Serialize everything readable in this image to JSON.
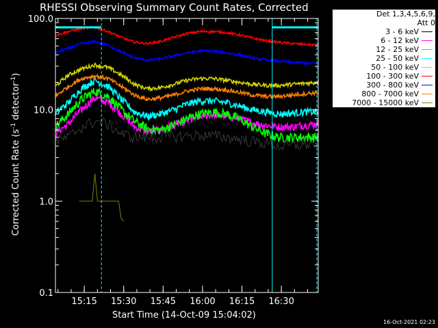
{
  "chart_data": {
    "type": "line",
    "title": "RHESSI Observing Summary Count Rates, Corrected",
    "xlabel": "Start Time (14-Oct-09 15:04:02)",
    "ylabel_prefix": "Corrected Count Rate (s",
    "ylabel_mid": " detector",
    "ylabel_suffix": ")",
    "ylabel_sup": "-1",
    "yscale": "log",
    "ylim": [
      0.1,
      100
    ],
    "xlim_minutes": [
      0,
      100
    ],
    "y_ticks": [
      "0.1",
      "1.0",
      "10.0",
      "100.0"
    ],
    "x_ticks": [
      {
        "label": "15:15",
        "min": 10.97
      },
      {
        "label": "15:30",
        "min": 25.97
      },
      {
        "label": "15:45",
        "min": 40.97
      },
      {
        "label": "16:00",
        "min": 55.97
      },
      {
        "label": "16:15",
        "min": 70.97
      },
      {
        "label": "16:30",
        "min": 85.97
      }
    ],
    "attenuator_bars": [
      {
        "x0": 0,
        "x1": 17.5,
        "y": 80
      },
      {
        "x0": 82.5,
        "x1": 100,
        "y": 80
      }
    ],
    "night_markers": [
      0.0,
      82.5
    ],
    "saa_markers": [
      17.5,
      100.0
    ],
    "legend_header": [
      "Det 1,3,4,5,6,9,",
      "Att 0"
    ],
    "timestamp": "16-Oct-2021 02:23",
    "series": [
      {
        "name": "3 - 6 keV",
        "color": "#000000",
        "draw": "#000000",
        "x": [
          0,
          5,
          10,
          15,
          20,
          25,
          30,
          40,
          50,
          55,
          60,
          65,
          70,
          75,
          80,
          85,
          90,
          95,
          100
        ],
        "y": [
          4.5,
          5.0,
          6.5,
          7.5,
          7.0,
          5.5,
          5.0,
          5.0,
          5.2,
          5.3,
          5.2,
          5.0,
          4.8,
          4.5,
          4.3,
          4.0,
          4.0,
          4.2,
          4.3
        ]
      },
      {
        "name": "6 - 12 keV",
        "color": "#ff00ff",
        "x": [
          0,
          5,
          10,
          15,
          20,
          25,
          30,
          35,
          40,
          45,
          50,
          55,
          60,
          65,
          70,
          75,
          80,
          85,
          90,
          95,
          100
        ],
        "y": [
          5.5,
          7,
          10,
          13.5,
          12,
          9,
          6.5,
          5.8,
          6,
          6.8,
          7.5,
          8.5,
          8.8,
          8.5,
          8,
          7.2,
          6.8,
          6.5,
          6.5,
          6.8,
          7
        ]
      },
      {
        "name": "12 - 25 keV",
        "color": "#00ff00",
        "x": [
          0,
          5,
          10,
          15,
          20,
          25,
          30,
          35,
          40,
          45,
          50,
          55,
          60,
          65,
          70,
          75,
          80,
          85,
          90,
          95,
          100
        ],
        "y": [
          6.5,
          9,
          13,
          16,
          14,
          10,
          7.5,
          6.2,
          6,
          6.8,
          8,
          9,
          9.5,
          9,
          8,
          6.5,
          5.5,
          5,
          5,
          5,
          5
        ]
      },
      {
        "name": "25 - 50 keV",
        "color": "#00ffff",
        "x": [
          0,
          5,
          10,
          15,
          20,
          25,
          30,
          35,
          40,
          45,
          50,
          55,
          60,
          65,
          70,
          75,
          80,
          85,
          90,
          95,
          100
        ],
        "y": [
          9,
          12,
          17,
          21,
          18,
          13,
          9.5,
          8.5,
          9,
          10,
          11.5,
          12.5,
          12.5,
          12,
          11,
          10,
          9.5,
          9,
          9.2,
          9.5,
          9.5
        ]
      },
      {
        "name": "50 - 100 keV",
        "color": "#d4d400",
        "x": [
          0,
          5,
          10,
          15,
          20,
          25,
          30,
          35,
          40,
          45,
          50,
          55,
          60,
          65,
          70,
          75,
          80,
          85,
          90,
          95,
          100
        ],
        "y": [
          18,
          24,
          28,
          31,
          29,
          24,
          19,
          17,
          17.5,
          19,
          21,
          22,
          22,
          21,
          20,
          19,
          18.5,
          18.5,
          19,
          19.5,
          20
        ]
      },
      {
        "name": "100 - 300 keV",
        "color": "#ff0000",
        "x": [
          0,
          5,
          10,
          15,
          20,
          25,
          30,
          35,
          40,
          45,
          50,
          55,
          60,
          65,
          70,
          75,
          80,
          85,
          90,
          95,
          100
        ],
        "y": [
          65,
          72,
          78,
          80,
          72,
          62,
          55,
          53,
          56,
          62,
          68,
          72,
          72,
          70,
          66,
          61,
          57,
          55,
          53,
          52,
          51
        ]
      },
      {
        "name": "300 - 800 keV",
        "color": "#0000ff",
        "x": [
          0,
          5,
          10,
          15,
          20,
          25,
          30,
          35,
          40,
          45,
          50,
          55,
          60,
          65,
          70,
          75,
          80,
          85,
          90,
          95,
          100
        ],
        "y": [
          42,
          47,
          53,
          56,
          51,
          43,
          37,
          35,
          36,
          39,
          42,
          44,
          44,
          42,
          40,
          37,
          35,
          34,
          33,
          32.5,
          32
        ]
      },
      {
        "name": "800 - 7000 keV",
        "color": "#ff8000",
        "x": [
          0,
          5,
          10,
          15,
          20,
          25,
          30,
          35,
          40,
          45,
          50,
          55,
          60,
          65,
          70,
          75,
          80,
          85,
          90,
          95,
          100
        ],
        "y": [
          14,
          18,
          22,
          23.5,
          22,
          18,
          14.5,
          13,
          13.5,
          14.5,
          16,
          17,
          17,
          16.5,
          15.5,
          14.5,
          14,
          14,
          14.5,
          15,
          15.5
        ]
      },
      {
        "name": "7000 - 15000 keV",
        "color": "#808000",
        "x": [
          9,
          12,
          13,
          14,
          15,
          16,
          17,
          18,
          19,
          20,
          21,
          22,
          23,
          24,
          25,
          26
        ],
        "y": [
          1.0,
          1.0,
          1.0,
          1.0,
          2.0,
          1.0,
          1.0,
          1.0,
          1.0,
          1.0,
          1.0,
          1.0,
          1.0,
          1.0,
          0.65,
          0.6
        ]
      }
    ]
  }
}
